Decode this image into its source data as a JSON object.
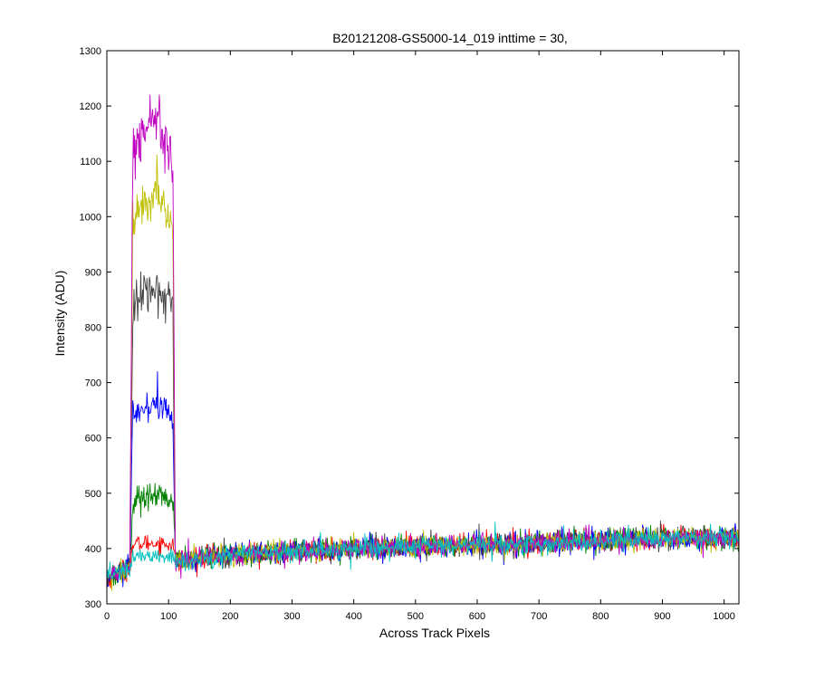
{
  "chart_data": {
    "type": "line",
    "title": "B20121208-GS5000-14_019 inttime = 30,",
    "xlabel": "Across Track Pixels",
    "ylabel": "Intensity (ADU)",
    "xlim": [
      0,
      1024
    ],
    "ylim": [
      300,
      1300
    ],
    "xticks": [
      0,
      100,
      200,
      300,
      400,
      500,
      600,
      700,
      800,
      900,
      1000
    ],
    "yticks": [
      300,
      400,
      500,
      600,
      700,
      800,
      900,
      1000,
      1100,
      1200,
      1300
    ],
    "grid": false,
    "legend": "none",
    "band": {
      "x_start": 38,
      "x_end": 110
    },
    "baseline": {
      "x": [
        0,
        10,
        40,
        100,
        200,
        300,
        400,
        500,
        600,
        700,
        800,
        900,
        1024
      ],
      "y": [
        345,
        352,
        368,
        378,
        388,
        395,
        400,
        404,
        408,
        410,
        414,
        418,
        420
      ]
    },
    "noise_amplitude": 13,
    "series": [
      {
        "color": "#ff0000",
        "band_level": 410,
        "band_noise": 8
      },
      {
        "color": "#008000",
        "band_level": 495,
        "band_noise": 13
      },
      {
        "color": "#0000ff",
        "band_level": 660,
        "band_noise": 14
      },
      {
        "color": "#404040",
        "band_level": 870,
        "band_noise": 20
      },
      {
        "color": "#bfbf00",
        "band_level": 1040,
        "band_noise": 22
      },
      {
        "color": "#bf00bf",
        "band_level": 1180,
        "band_noise": 25
      },
      {
        "color": "#00bfbf",
        "band_level": 385,
        "band_noise": 7
      }
    ]
  }
}
